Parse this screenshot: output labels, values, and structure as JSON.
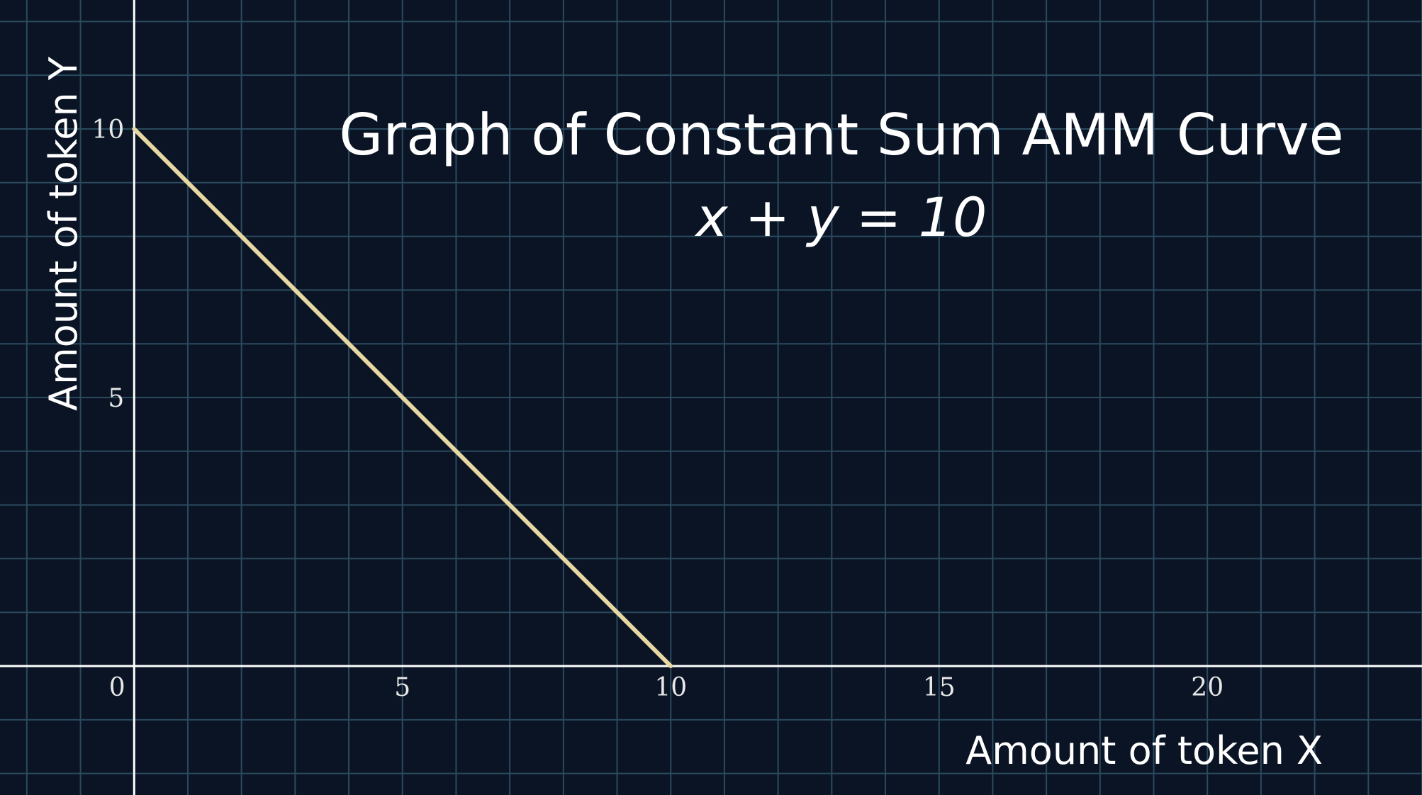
{
  "chart_data": {
    "type": "line",
    "title": "Graph of Constant Sum AMM Curve",
    "subtitle": "x + y = 10",
    "xlabel": "Amount of token X",
    "ylabel": "Amount of token Y",
    "xlim": [
      -2.5,
      24.0
    ],
    "ylim": [
      -2.4,
      12.4
    ],
    "x_ticks": [
      0,
      5,
      10,
      15,
      20
    ],
    "y_ticks": [
      5,
      10
    ],
    "x_tick_labels": [
      "0",
      "5",
      "10",
      "15",
      "20"
    ],
    "y_tick_labels": [
      "5",
      "10"
    ],
    "grid": true,
    "series": [
      {
        "x": [
          0,
          10
        ],
        "y": [
          10,
          0
        ],
        "color": "#e6d7a3"
      }
    ]
  },
  "colors": {
    "background": "#0a1424",
    "grid": "#2b4a5f",
    "axis": "#ffffff",
    "series": "#e6d7a3"
  }
}
